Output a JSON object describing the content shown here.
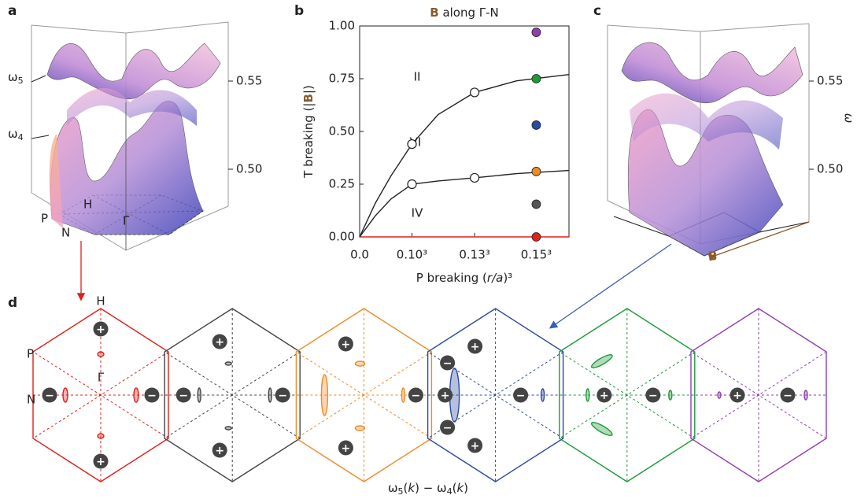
{
  "figure": {
    "a": {
      "label": "a",
      "omega5": {
        "base": "ω",
        "sub": "5"
      },
      "omega4": {
        "base": "ω",
        "sub": "4"
      },
      "zticks": [
        {
          "value": 0.55,
          "label": "0.55"
        },
        {
          "value": 0.5,
          "label": "0.50"
        }
      ],
      "points": [
        "P",
        "N",
        "H",
        "Γ"
      ]
    },
    "c": {
      "label": "c",
      "zticks": [
        {
          "value": 0.55,
          "label": "0.55"
        },
        {
          "value": 0.5,
          "label": "0.50"
        }
      ],
      "zlabel": "ω",
      "field": "B"
    },
    "d": {
      "label": "d",
      "points": [
        "H",
        "P",
        "N",
        "Γ"
      ],
      "caption": [
        {
          "text": "ω",
          "style": "normal"
        },
        {
          "text": "5",
          "style": "sub"
        },
        {
          "text": "(",
          "style": "normal"
        },
        {
          "text": "k",
          "style": "italic"
        },
        {
          "text": ") − ω",
          "style": "normal"
        },
        {
          "text": "4",
          "style": "sub"
        },
        {
          "text": "(",
          "style": "normal"
        },
        {
          "text": "k",
          "style": "italic"
        },
        {
          "text": ")",
          "style": "normal"
        }
      ],
      "hexagons": [
        {
          "color": "#e0201b",
          "charges": [
            "+",
            "+",
            "−",
            "−"
          ]
        },
        {
          "color": "#444444",
          "charges": [
            "+",
            "+",
            "−",
            "−"
          ]
        },
        {
          "color": "#f08a24",
          "charges": [
            "+",
            "+",
            "−"
          ]
        },
        {
          "color": "#2b4aa0",
          "charges": [
            "+",
            "−",
            "+",
            "−",
            "+",
            "−"
          ]
        },
        {
          "color": "#1e9a3a",
          "charges": [
            "+",
            "−"
          ]
        },
        {
          "color": "#8e3fb0",
          "charges": [
            "+",
            "−"
          ]
        }
      ]
    }
  },
  "chart_data": {
    "type": "line",
    "label": "b",
    "title_bold": "B",
    "title": " along Γ-N",
    "ylabel": [
      {
        "text": "T breaking (|",
        "style": "normal"
      },
      {
        "text": "B",
        "style": "bold"
      },
      {
        "text": "|)",
        "style": "normal"
      }
    ],
    "xlabel": [
      {
        "text": "P breaking (",
        "style": "normal"
      },
      {
        "text": "r/a",
        "style": "italic"
      },
      {
        "text": ")³",
        "style": "normal"
      }
    ],
    "xlim": [
      0,
      0.004
    ],
    "ylim": [
      0,
      1
    ],
    "xticks": [
      {
        "value": 0,
        "label": "0.0"
      },
      {
        "value": 0.001,
        "label": "0.10³"
      },
      {
        "value": 0.002197,
        "label": "0.13³"
      },
      {
        "value": 0.003375,
        "label": "0.15³"
      }
    ],
    "yticks": [
      {
        "value": 0,
        "label": "0.00"
      },
      {
        "value": 0.25,
        "label": "0.25"
      },
      {
        "value": 0.5,
        "label": "0.50"
      },
      {
        "value": 0.75,
        "label": "0.75"
      },
      {
        "value": 1,
        "label": "1.00"
      }
    ],
    "annotations": [
      "II",
      "VI",
      "IV"
    ],
    "series": [
      {
        "style": "line",
        "color": "#e0201b",
        "x": [
          0,
          0.004
        ],
        "values": [
          0,
          0
        ]
      },
      {
        "style": "line",
        "color": "#222222",
        "x": [
          0,
          0.0003,
          0.0006,
          0.001,
          0.0015,
          0.002197,
          0.003,
          0.004
        ],
        "values": [
          0,
          0.16,
          0.29,
          0.44,
          0.58,
          0.685,
          0.74,
          0.77
        ]
      },
      {
        "style": "line",
        "color": "#222222",
        "x": [
          0,
          0.0003,
          0.0006,
          0.001,
          0.0015,
          0.002197,
          0.003,
          0.004
        ],
        "values": [
          0,
          0.1,
          0.18,
          0.25,
          0.265,
          0.28,
          0.3,
          0.315
        ]
      },
      {
        "style": "open-marker",
        "color": "#222222",
        "x": [
          0.001,
          0.002197,
          0.001,
          0.002197
        ],
        "values": [
          0.44,
          0.685,
          0.25,
          0.28
        ]
      },
      {
        "style": "marker",
        "colors": [
          "#e0201b",
          "#555555",
          "#f08a24",
          "#2b4aa0",
          "#1e9a3a",
          "#8e3fb0"
        ],
        "x": [
          0.003375,
          0.003375,
          0.003375,
          0.003375,
          0.003375,
          0.003375
        ],
        "values": [
          0,
          0.155,
          0.31,
          0.53,
          0.75,
          0.97
        ]
      }
    ]
  }
}
